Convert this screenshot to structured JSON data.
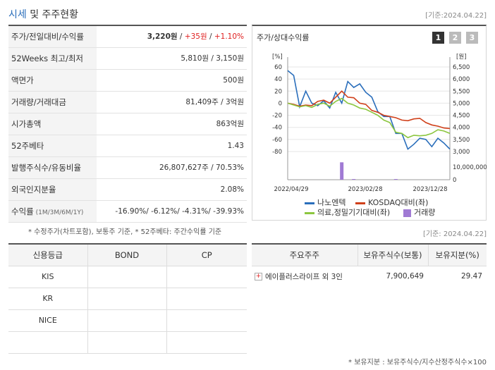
{
  "header": {
    "title_accent": "시세",
    "title_rest": " 및 주주현황",
    "date": "[기준:2024.04.22]"
  },
  "quote": {
    "rows": [
      {
        "label": "주가/전일대비/수익률",
        "price": "3,220원",
        "sep1": " / ",
        "change": "+35원",
        "sep2": " / ",
        "rate": "+1.10%"
      },
      {
        "label": "52Weeks 최고/최저",
        "value": "5,810원 / 3,150원"
      },
      {
        "label": "액면가",
        "value": "500원"
      },
      {
        "label": "거래량/거래대금",
        "value": "81,409주 / 3억원"
      },
      {
        "label": "시가총액",
        "value": "863억원"
      },
      {
        "label": "52주베타",
        "value": "1.43"
      },
      {
        "label": "발행주식수/유동비율",
        "value": "26,807,627주 / 70.53%"
      },
      {
        "label": "외국인지분율",
        "value": "2.08%"
      },
      {
        "label": "수익률",
        "label_small": " (1M/3M/6M/1Y)",
        "value": "-16.90%/ -6.12%/ -4.31%/ -39.93%"
      }
    ]
  },
  "note": "* 수정주가(차트포함), 보통주 기준, * 52주베타: 주간수익률 기준",
  "chart_panel": {
    "title": "주가/상대수익률",
    "pages": [
      "1",
      "2",
      "3"
    ],
    "legend": [
      {
        "name": "나노엔텍",
        "color": "#2a6ebb"
      },
      {
        "name": "KOSDAQ대비(좌)",
        "color": "#d0401a"
      },
      {
        "name": "의료,정밀기기대비(좌)",
        "color": "#8cc63f"
      },
      {
        "name": "거래량",
        "color": "#a07ad4"
      }
    ]
  },
  "chart_data": {
    "type": "line",
    "x_tick_labels": [
      "2022/04/29",
      "2023/02/28",
      "2023/12/28"
    ],
    "left_axis": {
      "unit": "[%]",
      "ticks": [
        "60",
        "40",
        "20",
        "0",
        "-20",
        "-40",
        "-60",
        "-80"
      ],
      "ylim": [
        -80,
        60
      ]
    },
    "right_axis": {
      "unit": "[원]",
      "ticks": [
        "6,500",
        "6,000",
        "5,500",
        "5,000",
        "4,500",
        "4,000",
        "3,500",
        "3,000"
      ],
      "ylim": [
        3000,
        6500
      ]
    },
    "volume_axis": {
      "ticks": [
        "10,000,000",
        "0"
      ],
      "ylim": [
        0,
        10000000
      ]
    },
    "series": [
      {
        "name": "나노엔텍",
        "axis": "right",
        "color": "#2a6ebb",
        "values": [
          6350,
          6150,
          4850,
          5500,
          5000,
          4900,
          5100,
          4800,
          5450,
          5000,
          5900,
          5650,
          5800,
          5450,
          5250,
          4650,
          4450,
          4450,
          3750,
          3750,
          3100,
          3300,
          3550,
          3500,
          3200,
          3550,
          3350,
          3100
        ]
      },
      {
        "name": "KOSDAQ대비(좌)",
        "axis": "left",
        "color": "#d0401a",
        "values": [
          0,
          -2,
          -5,
          -3,
          -4,
          3,
          5,
          0,
          10,
          20,
          10,
          9,
          0,
          -2,
          -12,
          -15,
          -20,
          -22,
          -24,
          -28,
          -29,
          -26,
          -25,
          -32,
          -36,
          -38,
          -41,
          -42
        ]
      },
      {
        "name": "의료,정밀기기대비(좌)",
        "axis": "left",
        "color": "#8cc63f",
        "values": [
          0,
          -3,
          -6,
          -4,
          -7,
          -2,
          0,
          -5,
          3,
          8,
          0,
          -3,
          -8,
          -10,
          -15,
          -20,
          -28,
          -32,
          -48,
          -50,
          -57,
          -53,
          -54,
          -53,
          -50,
          -44,
          -46,
          -50
        ]
      }
    ],
    "volume": {
      "name": "거래량",
      "color": "#a07ad4",
      "bars": [
        {
          "x_index": 9,
          "value": 9500000
        },
        {
          "x_index": 11,
          "value": 200000
        },
        {
          "x_index": 18,
          "value": 150000
        }
      ]
    },
    "grid": true
  },
  "right_date": "[기준: 2024.04.22]",
  "credit": {
    "headers": [
      "신용등급",
      "BOND",
      "CP"
    ],
    "rows": [
      [
        "KIS",
        "",
        ""
      ],
      [
        "KR",
        "",
        ""
      ],
      [
        "NICE",
        "",
        ""
      ],
      [
        "",
        "",
        ""
      ]
    ]
  },
  "holders": {
    "headers": [
      "주요주주",
      "보유주식수(보통)",
      "보유지분(%)"
    ],
    "rows": [
      {
        "name": "에이플러스라이프 외 3인",
        "shares": "7,900,649",
        "pct": "29.47"
      }
    ]
  },
  "footnote": "* 보유지분 : 보유주식수/지수산정주식수×100"
}
